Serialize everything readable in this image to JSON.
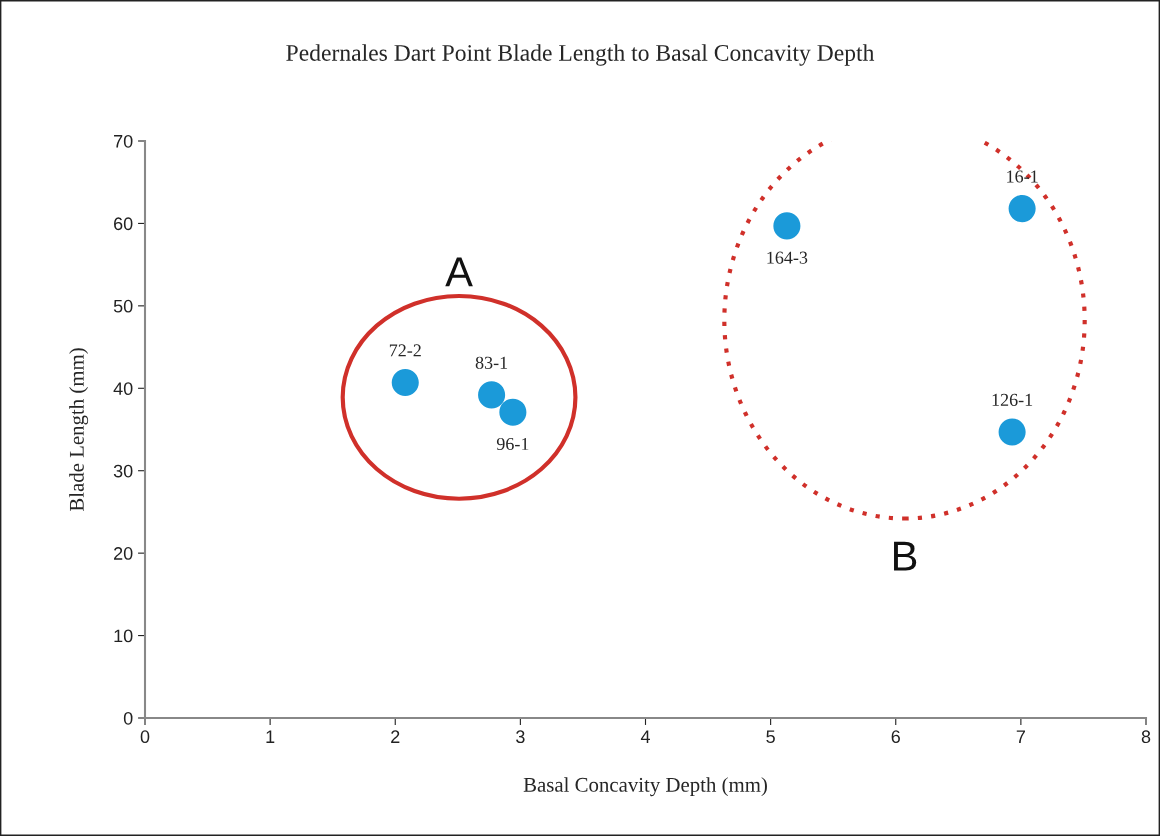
{
  "chart_data": {
    "type": "scatter",
    "title": "Pedernales Dart Point Blade Length to Basal Concavity Depth",
    "xlabel": "Basal Concavity Depth (mm)",
    "ylabel": "Blade Length (mm)",
    "x": [
      2.08,
      2.77,
      2.94,
      5.13,
      7.01,
      6.93
    ],
    "values": [
      40.7,
      39.2,
      37.1,
      59.7,
      61.8,
      34.7
    ],
    "value_labels": [
      "72-2",
      "83-1",
      "96-1",
      "164-3",
      "16-1",
      "126-1"
    ],
    "color": "#1b9ad9",
    "marker": "circle",
    "xlim": [
      0,
      8
    ],
    "xticks": [
      0,
      1,
      2,
      3,
      4,
      5,
      6,
      7,
      8
    ],
    "ylim": [
      0,
      70
    ],
    "yticks": [
      0,
      10,
      20,
      30,
      40,
      50,
      60,
      70
    ],
    "grid": false,
    "annotations": [
      "A",
      "B"
    ]
  }
}
